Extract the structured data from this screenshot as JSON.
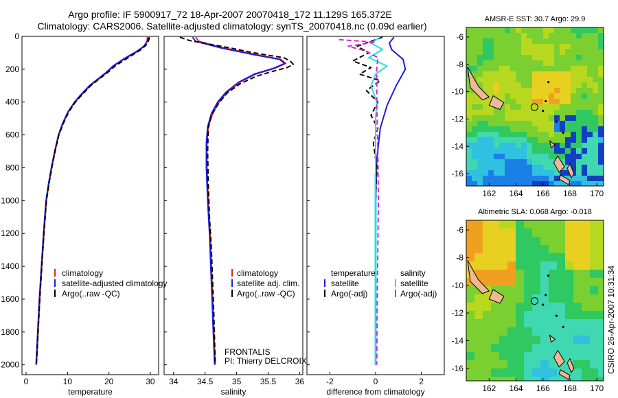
{
  "header": {
    "line1": "Argo profile: IF 5900917_72 18-Apr-2007 20070418_172 11.129S 165.372E",
    "line2": "Climatology: CARS2006. Satellite-adjusted climatology: synTS_20070418.nc (0.09d earlier)"
  },
  "colors": {
    "climatology": "#e8231b",
    "satellite": "#1a1ae0",
    "argo": "#000000",
    "salinity_satellite": "#22e0e0",
    "salinity_argo": "#e020e0",
    "land": "#f0b898"
  },
  "chart_data": [
    {
      "type": "line",
      "panel": "temperature",
      "xlabel": "temperature",
      "xlim": [
        -1,
        32
      ],
      "xticks": [
        0,
        10,
        20,
        30
      ],
      "ylim": [
        2060,
        0
      ],
      "yticks": [
        0,
        200,
        400,
        600,
        800,
        1000,
        1200,
        1400,
        1600,
        1800,
        2000
      ],
      "legend": [
        "climatology",
        "satellite-adjusted climatology",
        "Argo(..raw -QC)"
      ],
      "series": [
        {
          "name": "climatology",
          "style": "solid",
          "color": "#e8231b",
          "points": [
            [
              29.3,
              5
            ],
            [
              29.2,
              30
            ],
            [
              28.5,
              60
            ],
            [
              27,
              90
            ],
            [
              25,
              120
            ],
            [
              23,
              150
            ],
            [
              21.2,
              180
            ],
            [
              19.5,
              220
            ],
            [
              17.5,
              260
            ],
            [
              15.5,
              300
            ],
            [
              13.6,
              350
            ],
            [
              11.8,
              400
            ],
            [
              10.2,
              460
            ],
            [
              8.9,
              530
            ],
            [
              7.9,
              600
            ],
            [
              7,
              700
            ],
            [
              6.2,
              800
            ],
            [
              5.5,
              900
            ],
            [
              4.9,
              1000
            ],
            [
              4.3,
              1200
            ],
            [
              3.8,
              1400
            ],
            [
              3.3,
              1600
            ],
            [
              2.9,
              1800
            ],
            [
              2.5,
              2000
            ]
          ]
        },
        {
          "name": "satellite-adjusted climatology",
          "style": "solid",
          "color": "#1a1ae0",
          "points": [
            [
              29.5,
              5
            ],
            [
              29.3,
              30
            ],
            [
              28.4,
              60
            ],
            [
              26.8,
              90
            ],
            [
              24.7,
              120
            ],
            [
              22.8,
              150
            ],
            [
              21,
              180
            ],
            [
              19.3,
              220
            ],
            [
              17.3,
              260
            ],
            [
              15.3,
              300
            ],
            [
              13.4,
              350
            ],
            [
              11.7,
              400
            ],
            [
              10.1,
              460
            ],
            [
              8.8,
              530
            ],
            [
              7.8,
              600
            ],
            [
              6.9,
              700
            ],
            [
              6.1,
              800
            ],
            [
              5.4,
              900
            ],
            [
              4.8,
              1000
            ],
            [
              4.2,
              1200
            ],
            [
              3.7,
              1400
            ],
            [
              3.2,
              1600
            ],
            [
              2.8,
              1800
            ],
            [
              2.4,
              2000
            ]
          ]
        },
        {
          "name": "Argo(..raw -QC)",
          "style": "dashed",
          "color": "#000000",
          "points": [
            [
              29.8,
              5
            ],
            [
              29.6,
              25
            ],
            [
              28.9,
              55
            ],
            [
              27.5,
              85
            ],
            [
              25.3,
              120
            ],
            [
              23.4,
              150
            ],
            [
              21.5,
              180
            ],
            [
              19.7,
              220
            ],
            [
              17.6,
              260
            ],
            [
              15.6,
              300
            ],
            [
              13.7,
              350
            ],
            [
              11.9,
              400
            ],
            [
              10.3,
              460
            ],
            [
              9,
              530
            ],
            [
              7.9,
              600
            ],
            [
              7,
              700
            ],
            [
              6.2,
              800
            ],
            [
              5.5,
              900
            ],
            [
              4.9,
              1000
            ],
            [
              4.3,
              1200
            ],
            [
              3.8,
              1400
            ],
            [
              3.3,
              1600
            ],
            [
              2.9,
              1800
            ],
            [
              2.5,
              1990
            ]
          ]
        }
      ]
    },
    {
      "type": "line",
      "panel": "salinity",
      "xlabel": "salinity",
      "xlim": [
        33.85,
        36.05
      ],
      "xticks": [
        34,
        34.5,
        35,
        35.5,
        36
      ],
      "ylim": [
        2060,
        0
      ],
      "legend": [
        "climatology",
        "satellite adj. clim.",
        "Argo(..raw -QC)"
      ],
      "annotations": [
        "FRONTALIS",
        "PI: Thierry DELCROIX"
      ],
      "series": [
        {
          "name": "climatology",
          "style": "solid",
          "color": "#e8231b",
          "points": [
            [
              34.35,
              5
            ],
            [
              34.4,
              30
            ],
            [
              34.8,
              70
            ],
            [
              35.3,
              110
            ],
            [
              35.7,
              140
            ],
            [
              35.78,
              165
            ],
            [
              35.6,
              195
            ],
            [
              35.3,
              230
            ],
            [
              35.05,
              280
            ],
            [
              34.85,
              340
            ],
            [
              34.72,
              400
            ],
            [
              34.62,
              470
            ],
            [
              34.55,
              550
            ],
            [
              34.53,
              650
            ],
            [
              34.53,
              800
            ],
            [
              34.55,
              1000
            ],
            [
              34.58,
              1200
            ],
            [
              34.6,
              1400
            ],
            [
              34.62,
              1600
            ],
            [
              34.64,
              1800
            ],
            [
              34.66,
              2000
            ]
          ]
        },
        {
          "name": "satellite adj. clim.",
          "style": "solid",
          "color": "#1a1ae0",
          "points": [
            [
              34.3,
              5
            ],
            [
              34.35,
              30
            ],
            [
              34.75,
              70
            ],
            [
              35.25,
              110
            ],
            [
              35.68,
              140
            ],
            [
              35.76,
              165
            ],
            [
              35.58,
              195
            ],
            [
              35.28,
              230
            ],
            [
              35.03,
              280
            ],
            [
              34.83,
              340
            ],
            [
              34.7,
              400
            ],
            [
              34.6,
              470
            ],
            [
              34.54,
              550
            ],
            [
              34.52,
              650
            ],
            [
              34.52,
              800
            ],
            [
              34.54,
              1000
            ],
            [
              34.57,
              1200
            ],
            [
              34.59,
              1400
            ],
            [
              34.61,
              1600
            ],
            [
              34.63,
              1800
            ],
            [
              34.65,
              2000
            ]
          ]
        },
        {
          "name": "Argo(..raw -QC)",
          "style": "dashed",
          "color": "#000000",
          "points": [
            [
              34.1,
              5
            ],
            [
              34.25,
              25
            ],
            [
              34.6,
              50
            ],
            [
              34.9,
              70
            ],
            [
              35.2,
              95
            ],
            [
              35.5,
              115
            ],
            [
              35.75,
              130
            ],
            [
              35.85,
              150
            ],
            [
              35.9,
              170
            ],
            [
              35.8,
              190
            ],
            [
              35.55,
              215
            ],
            [
              35.3,
              245
            ],
            [
              35.05,
              290
            ],
            [
              34.85,
              345
            ],
            [
              34.72,
              405
            ],
            [
              34.6,
              480
            ],
            [
              34.55,
              560
            ],
            [
              34.54,
              700
            ],
            [
              34.55,
              900
            ],
            [
              34.57,
              1100
            ],
            [
              34.6,
              1300
            ],
            [
              34.62,
              1500
            ],
            [
              34.64,
              1700
            ],
            [
              34.66,
              1990
            ]
          ]
        }
      ]
    },
    {
      "type": "line",
      "panel": "difference",
      "xlabel": "difference from climatology",
      "xlim": [
        -3,
        3
      ],
      "xticks": [
        -2,
        0,
        2
      ],
      "ylim": [
        2060,
        0
      ],
      "legend": [
        "temperature",
        "satellite",
        "Argo(-adj)",
        "salinity",
        "satellite",
        "Argo(-adj)"
      ],
      "series": [
        {
          "name": "satellite",
          "group": "temperature",
          "style": "solid",
          "color": "#1a1ae0",
          "points": [
            [
              0.8,
              5
            ],
            [
              0.6,
              40
            ],
            [
              0.7,
              80
            ],
            [
              1.2,
              140
            ],
            [
              1.3,
              200
            ],
            [
              0.9,
              300
            ],
            [
              0.5,
              420
            ],
            [
              0.2,
              560
            ],
            [
              0.05,
              750
            ],
            [
              0,
              1000
            ],
            [
              0,
              1500
            ],
            [
              0,
              2000
            ]
          ]
        },
        {
          "name": "Argo(-adj)",
          "group": "temperature",
          "style": "dashed",
          "color": "#000000",
          "points": [
            [
              0.3,
              5
            ],
            [
              -0.8,
              60
            ],
            [
              -0.3,
              100
            ],
            [
              -1,
              150
            ],
            [
              -0.2,
              190
            ],
            [
              -0.7,
              230
            ],
            [
              0.2,
              270
            ],
            [
              -0.4,
              330
            ],
            [
              0.1,
              400
            ],
            [
              -0.2,
              480
            ],
            [
              0.1,
              560
            ],
            [
              -0.1,
              650
            ],
            [
              0.05,
              800
            ],
            [
              0,
              1000
            ],
            [
              0,
              1500
            ],
            [
              0,
              2000
            ]
          ]
        },
        {
          "name": "satellite",
          "group": "salinity",
          "style": "solid",
          "color": "#22e0e0",
          "points": [
            [
              0.2,
              5
            ],
            [
              -0.2,
              40
            ],
            [
              0.3,
              80
            ],
            [
              -0.3,
              130
            ],
            [
              0.5,
              180
            ],
            [
              0,
              230
            ],
            [
              -0.2,
              300
            ],
            [
              0.05,
              400
            ],
            [
              0,
              500
            ],
            [
              0,
              1000
            ],
            [
              0,
              1500
            ],
            [
              0,
              2000
            ]
          ]
        },
        {
          "name": "Argo(-adj)",
          "group": "salinity",
          "style": "dashed",
          "color": "#e020e0",
          "points": [
            [
              -1.6,
              20
            ],
            [
              0,
              35
            ],
            [
              -1.2,
              60
            ],
            [
              -0.4,
              90
            ],
            [
              0.1,
              130
            ],
            [
              0.05,
              200
            ],
            [
              0.05,
              400
            ],
            [
              0.1,
              700
            ],
            [
              0.12,
              1000
            ],
            [
              0.08,
              1500
            ],
            [
              0.05,
              2000
            ]
          ]
        }
      ]
    }
  ],
  "maps": [
    {
      "title": "AMSR-E SST: 30.7 Argo: 29.9",
      "xticks": [
        162,
        164,
        166,
        168,
        170
      ],
      "yticks": [
        -6,
        -8,
        -10,
        -12,
        -14,
        -16
      ],
      "xlim": [
        160.3,
        170.5
      ],
      "ylim": [
        -16.9,
        -5.3
      ],
      "float_position": [
        165.37,
        -11.13
      ]
    },
    {
      "title": "Altimetric SLA: 0.068 Argo: -0.018",
      "xticks": [
        162,
        164,
        166,
        168,
        170
      ],
      "yticks": [
        -6,
        -8,
        -10,
        -12,
        -14,
        -16
      ],
      "xlim": [
        160.3,
        170.5
      ],
      "ylim": [
        -16.9,
        -5.3
      ],
      "float_position": [
        165.37,
        -11.13
      ]
    }
  ],
  "footer_stamp": "CSIRO 26-Apr-2007 10:31:34"
}
